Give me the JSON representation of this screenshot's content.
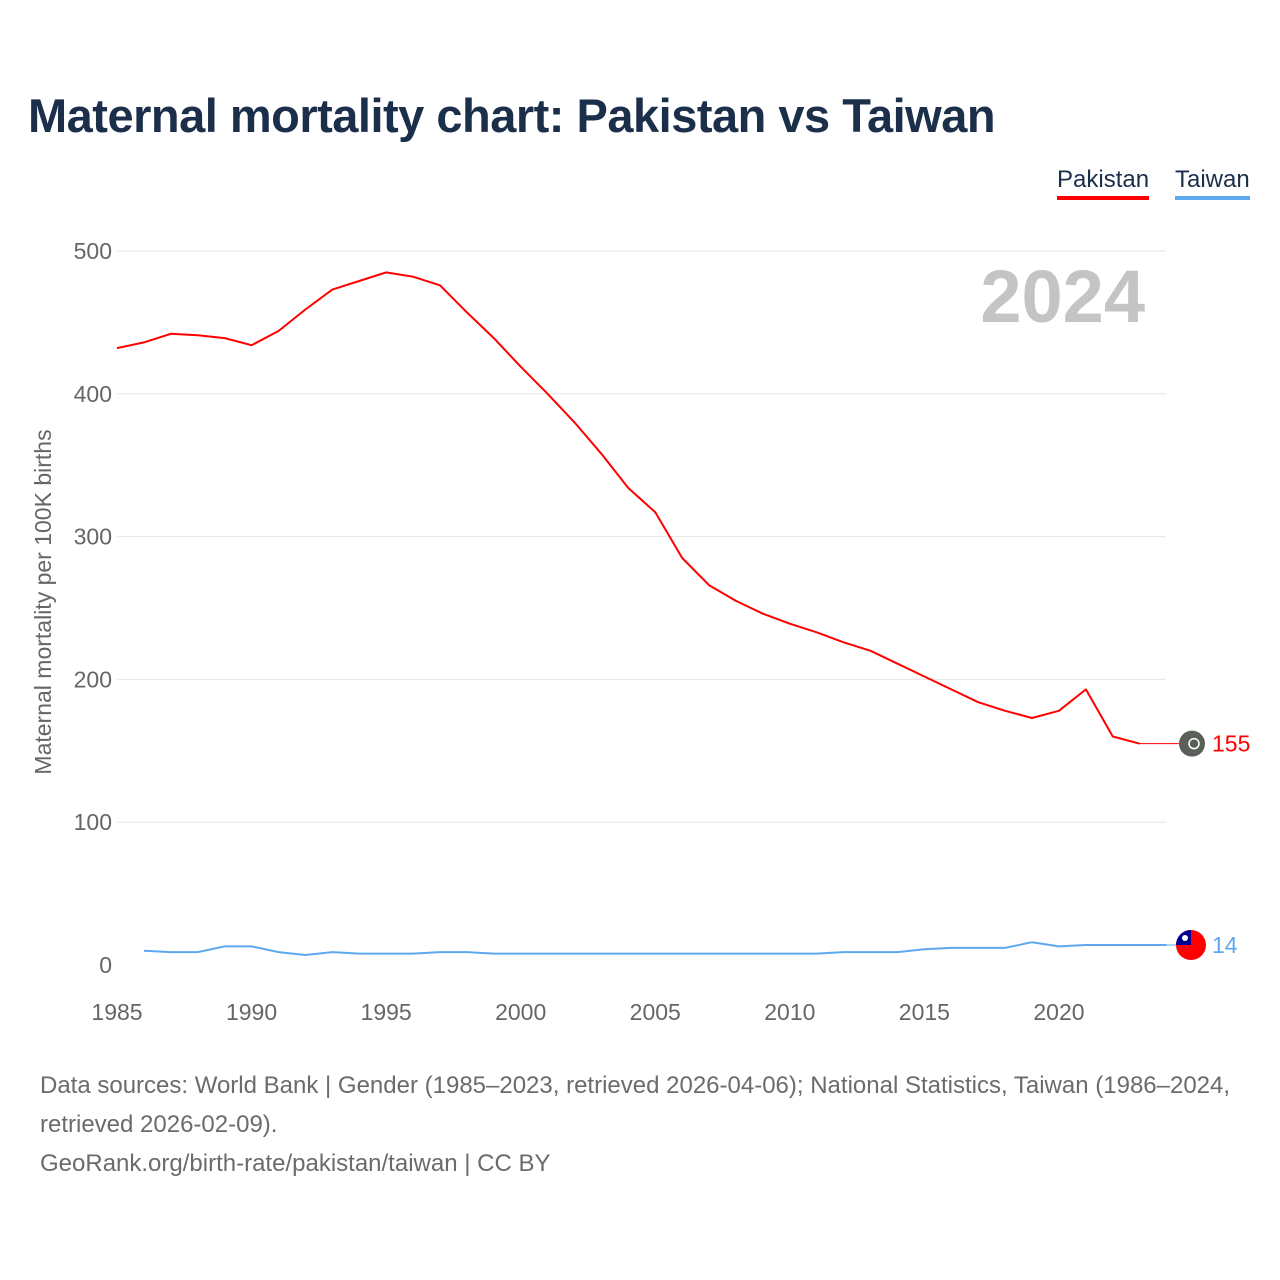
{
  "title": "Maternal mortality chart: Pakistan vs Taiwan",
  "legend": [
    {
      "label": "Pakistan",
      "color": "#ff0000"
    },
    {
      "label": "Taiwan",
      "color": "#5ea8f0"
    }
  ],
  "year_watermark": "2024",
  "footer": {
    "sources": "Data sources: World Bank | Gender (1985–2023, retrieved 2026-04-06); National Statistics, Taiwan (1986–2024, retrieved 2026-02-09).",
    "link": "GeoRank.org/birth-rate/pakistan/taiwan | CC BY"
  },
  "chart_data": {
    "type": "line",
    "title": "Maternal mortality chart: Pakistan vs Taiwan",
    "xlabel": "",
    "ylabel": "Maternal mortality per 100K births",
    "xlim": [
      1985,
      2024
    ],
    "ylim": [
      0,
      500
    ],
    "xticks": [
      "1985",
      "1990",
      "1995",
      "2000",
      "2005",
      "2010",
      "2015",
      "2020"
    ],
    "yticks": [
      "0",
      "100",
      "200",
      "300",
      "400",
      "500"
    ],
    "grid": true,
    "legend_position": "top-right",
    "series": [
      {
        "name": "Pakistan",
        "color": "#ff0000",
        "end_label": "155",
        "extend_to": 2024,
        "x": [
          1985,
          1986,
          1987,
          1988,
          1989,
          1990,
          1991,
          1992,
          1993,
          1994,
          1995,
          1996,
          1997,
          1998,
          1999,
          2000,
          2001,
          2002,
          2003,
          2004,
          2005,
          2006,
          2007,
          2008,
          2009,
          2010,
          2011,
          2012,
          2013,
          2014,
          2015,
          2016,
          2017,
          2018,
          2019,
          2020,
          2021,
          2022,
          2023
        ],
        "values": [
          432,
          436,
          442,
          441,
          439,
          434,
          444,
          459,
          473,
          479,
          485,
          482,
          476,
          457,
          439,
          419,
          400,
          380,
          358,
          334,
          317,
          285,
          266,
          255,
          246,
          239,
          233,
          226,
          220,
          211,
          202,
          193,
          184,
          178,
          173,
          178,
          193,
          160,
          155
        ]
      },
      {
        "name": "Taiwan",
        "color": "#5ea8f0",
        "end_label": "14",
        "extend_to": 2024,
        "x": [
          1986,
          1987,
          1988,
          1989,
          1990,
          1991,
          1992,
          1993,
          1994,
          1995,
          1996,
          1997,
          1998,
          1999,
          2000,
          2001,
          2002,
          2003,
          2004,
          2005,
          2006,
          2007,
          2008,
          2009,
          2010,
          2011,
          2012,
          2013,
          2014,
          2015,
          2016,
          2017,
          2018,
          2019,
          2020,
          2021,
          2022,
          2023,
          2024
        ],
        "values": [
          10,
          9,
          9,
          13,
          13,
          9,
          7,
          9,
          8,
          8,
          8,
          9,
          9,
          8,
          8,
          8,
          8,
          8,
          8,
          8,
          8,
          8,
          8,
          8,
          8,
          8,
          9,
          9,
          9,
          11,
          12,
          12,
          12,
          16,
          13,
          14,
          14,
          14,
          14
        ]
      }
    ]
  }
}
